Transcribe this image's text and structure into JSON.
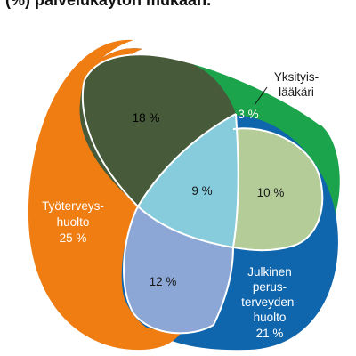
{
  "title": "(%) palvelukäytön mukaan.",
  "colors": {
    "tyoterveys": "#f07d12",
    "yksityis": "#1ba44b",
    "julkinen": "#0f66ad",
    "tyo_yks": "#475a3a",
    "yks_julk": "#b3cc98",
    "tyo_julk": "#8ca6d6",
    "all_three": "#86ccdc"
  },
  "regions": {
    "tyoterveys": {
      "label_lines": [
        "Työterveys-",
        "huolto",
        "25 %"
      ]
    },
    "yksityis_value": "3 %",
    "yksityis_label_lines": [
      "Yksityis-",
      "lääkäri"
    ],
    "julkinen": {
      "label_lines": [
        "Julkinen",
        "perus-",
        "terveyden-",
        "huolto",
        "21 %"
      ]
    },
    "tyo_yks": "18 %",
    "yks_julk": "10 %",
    "tyo_julk": "12 %",
    "all_three": "9 %"
  }
}
